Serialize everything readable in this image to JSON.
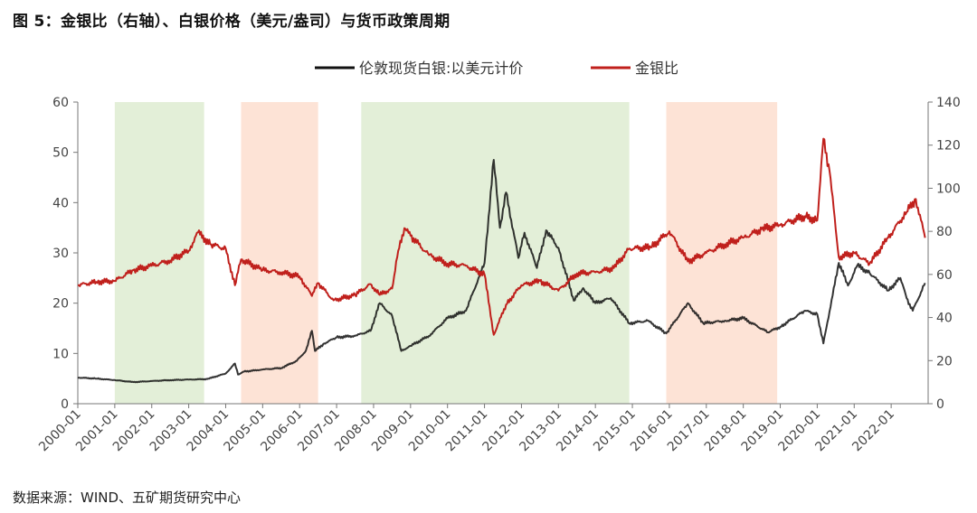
{
  "title": "图 5：金银比（右轴）、白银价格（美元/盎司）与货币政策周期",
  "source": "数据来源：WIND、五矿期货研究中心",
  "colors": {
    "silver": "#111111",
    "ratio": "#c0201c",
    "easing": "#e3efd8",
    "tightening": "#fde3d6"
  },
  "chart_data": {
    "type": "line",
    "title": "图 5：金银比（右轴）、白银价格（美元/盎司）与货币政策周期",
    "legend_position": "top-center",
    "x_range": [
      "2000-01",
      "2022-12"
    ],
    "x_ticks": [
      "2000-01",
      "2001-01",
      "2002-01",
      "2003-01",
      "2004-01",
      "2005-01",
      "2006-01",
      "2007-01",
      "2008-01",
      "2009-01",
      "2010-01",
      "2011-01",
      "2012-01",
      "2013-01",
      "2014-01",
      "2015-01",
      "2016-01",
      "2017-01",
      "2018-01",
      "2019-01",
      "2020-01",
      "2021-01",
      "2022-01"
    ],
    "y_left": {
      "ylim": [
        0,
        60
      ],
      "ticks": [
        0,
        10,
        20,
        30,
        40,
        50,
        60
      ]
    },
    "y_right": {
      "ylim": [
        0,
        140
      ],
      "ticks": [
        0,
        20,
        40,
        60,
        80,
        100,
        120,
        140
      ]
    },
    "shaded_periods": [
      {
        "type": "easing",
        "start": "2001-01",
        "end": "2003-06"
      },
      {
        "type": "tightening",
        "start": "2004-06",
        "end": "2006-07"
      },
      {
        "type": "easing",
        "start": "2007-09",
        "end": "2014-12"
      },
      {
        "type": "tightening",
        "start": "2015-12",
        "end": "2018-12"
      }
    ],
    "series": [
      {
        "name": "伦敦现货白银:以美元计价",
        "axis": "left",
        "points": [
          [
            "2000-01",
            5.2
          ],
          [
            "2000-07",
            5.0
          ],
          [
            "2001-01",
            4.7
          ],
          [
            "2001-07",
            4.3
          ],
          [
            "2002-01",
            4.5
          ],
          [
            "2002-07",
            4.7
          ],
          [
            "2003-01",
            4.8
          ],
          [
            "2003-07",
            4.9
          ],
          [
            "2004-01",
            6.0
          ],
          [
            "2004-04",
            8.0
          ],
          [
            "2004-05",
            5.8
          ],
          [
            "2004-07",
            6.4
          ],
          [
            "2005-01",
            6.8
          ],
          [
            "2005-07",
            7.1
          ],
          [
            "2005-12",
            8.5
          ],
          [
            "2006-03",
            10.5
          ],
          [
            "2006-05",
            14.5
          ],
          [
            "2006-06",
            10.5
          ],
          [
            "2006-09",
            12.0
          ],
          [
            "2007-01",
            13.2
          ],
          [
            "2007-07",
            13.5
          ],
          [
            "2007-12",
            14.5
          ],
          [
            "2008-03",
            20.0
          ],
          [
            "2008-07",
            17.5
          ],
          [
            "2008-10",
            10.5
          ],
          [
            "2009-01",
            11.5
          ],
          [
            "2009-07",
            13.5
          ],
          [
            "2010-01",
            17.0
          ],
          [
            "2010-07",
            18.5
          ],
          [
            "2011-01",
            28.0
          ],
          [
            "2011-04",
            48.5
          ],
          [
            "2011-06",
            35.0
          ],
          [
            "2011-08",
            42.0
          ],
          [
            "2011-12",
            29.0
          ],
          [
            "2012-02",
            34.0
          ],
          [
            "2012-06",
            27.0
          ],
          [
            "2012-09",
            34.5
          ],
          [
            "2013-01",
            31.0
          ],
          [
            "2013-06",
            20.5
          ],
          [
            "2013-09",
            23.0
          ],
          [
            "2014-01",
            20.0
          ],
          [
            "2014-06",
            21.0
          ],
          [
            "2014-12",
            16.0
          ],
          [
            "2015-06",
            16.5
          ],
          [
            "2015-12",
            14.0
          ],
          [
            "2016-07",
            20.0
          ],
          [
            "2016-12",
            16.0
          ],
          [
            "2017-07",
            16.5
          ],
          [
            "2018-01",
            17.0
          ],
          [
            "2018-09",
            14.2
          ],
          [
            "2019-01",
            15.3
          ],
          [
            "2019-09",
            18.5
          ],
          [
            "2020-01",
            17.8
          ],
          [
            "2020-03",
            12.0
          ],
          [
            "2020-08",
            28.0
          ],
          [
            "2020-11",
            23.5
          ],
          [
            "2021-02",
            27.5
          ],
          [
            "2021-06",
            26.0
          ],
          [
            "2021-12",
            22.5
          ],
          [
            "2022-04",
            25.0
          ],
          [
            "2022-06",
            21.0
          ],
          [
            "2022-08",
            18.5
          ],
          [
            "2022-12",
            24.0
          ]
        ]
      },
      {
        "name": "金银比",
        "axis": "right",
        "points": [
          [
            "2000-01",
            55.0
          ],
          [
            "2000-07",
            56.5
          ],
          [
            "2001-01",
            57.0
          ],
          [
            "2001-07",
            62.0
          ],
          [
            "2002-01",
            64.0
          ],
          [
            "2002-07",
            66.5
          ],
          [
            "2003-01",
            71.0
          ],
          [
            "2003-04",
            79.5
          ],
          [
            "2003-08",
            74.0
          ],
          [
            "2004-01",
            72.0
          ],
          [
            "2004-04",
            55.0
          ],
          [
            "2004-06",
            67.0
          ],
          [
            "2005-01",
            62.0
          ],
          [
            "2005-07",
            61.0
          ],
          [
            "2006-01",
            59.0
          ],
          [
            "2006-05",
            50.0
          ],
          [
            "2006-07",
            56.0
          ],
          [
            "2006-12",
            48.0
          ],
          [
            "2007-07",
            50.5
          ],
          [
            "2007-12",
            55.5
          ],
          [
            "2008-03",
            50.5
          ],
          [
            "2008-07",
            53.5
          ],
          [
            "2008-09",
            71.0
          ],
          [
            "2008-11",
            81.5
          ],
          [
            "2009-01",
            78.0
          ],
          [
            "2009-07",
            69.0
          ],
          [
            "2010-01",
            65.0
          ],
          [
            "2010-07",
            64.0
          ],
          [
            "2011-01",
            60.0
          ],
          [
            "2011-04",
            32.0
          ],
          [
            "2011-08",
            46.0
          ],
          [
            "2012-01",
            55.0
          ],
          [
            "2012-07",
            57.0
          ],
          [
            "2013-01",
            52.5
          ],
          [
            "2013-07",
            60.5
          ],
          [
            "2014-01",
            61.0
          ],
          [
            "2014-07",
            63.0
          ],
          [
            "2014-12",
            72.0
          ],
          [
            "2015-07",
            72.5
          ],
          [
            "2016-01",
            80.0
          ],
          [
            "2016-07",
            66.0
          ],
          [
            "2017-01",
            70.0
          ],
          [
            "2017-07",
            74.0
          ],
          [
            "2018-01",
            77.0
          ],
          [
            "2018-07",
            81.0
          ],
          [
            "2019-01",
            83.0
          ],
          [
            "2019-09",
            87.0
          ],
          [
            "2020-01",
            85.0
          ],
          [
            "2020-03",
            123.0
          ],
          [
            "2020-05",
            108.0
          ],
          [
            "2020-08",
            68.0
          ],
          [
            "2021-01",
            70.0
          ],
          [
            "2021-06",
            65.0
          ],
          [
            "2021-12",
            77.0
          ],
          [
            "2022-06",
            89.0
          ],
          [
            "2022-09",
            95.0
          ],
          [
            "2022-12",
            77.0
          ]
        ]
      }
    ]
  }
}
